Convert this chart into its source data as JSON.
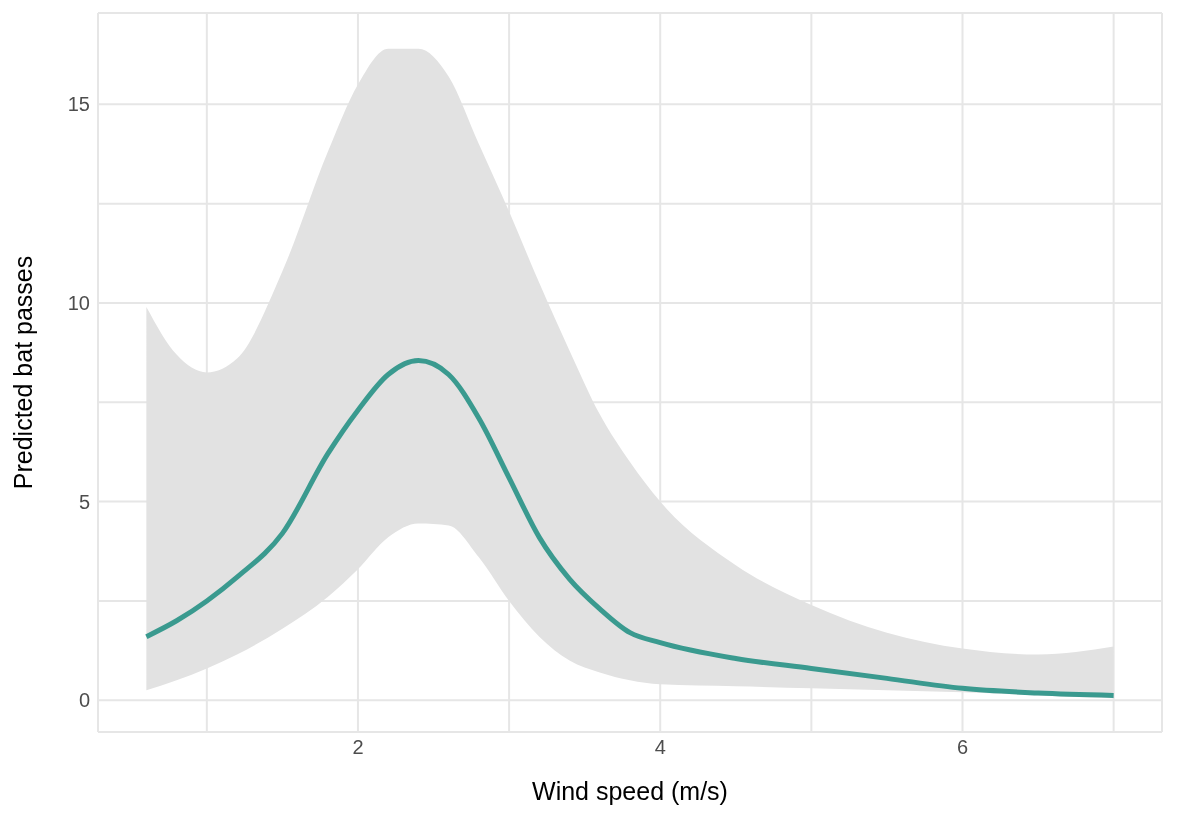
{
  "chart_data": {
    "type": "line",
    "xlabel": "Wind speed (m/s)",
    "ylabel": "Predicted bat passes",
    "x": [
      0.6,
      0.8,
      1.0,
      1.2,
      1.5,
      1.8,
      2.0,
      2.2,
      2.4,
      2.6,
      2.8,
      3.0,
      3.2,
      3.4,
      3.6,
      3.8,
      4.0,
      4.5,
      5.0,
      5.5,
      6.0,
      6.5,
      7.0
    ],
    "series": [
      {
        "color": "#3a9a8f",
        "values": [
          1.6,
          2.0,
          2.5,
          3.1,
          4.2,
          6.2,
          7.3,
          8.2,
          8.55,
          8.2,
          7.1,
          5.6,
          4.1,
          3.05,
          2.3,
          1.7,
          1.45,
          1.05,
          0.8,
          0.55,
          0.3,
          0.18,
          0.12
        ],
        "lower": [
          0.25,
          0.5,
          0.8,
          1.15,
          1.8,
          2.6,
          3.3,
          4.1,
          4.45,
          4.4,
          3.6,
          2.5,
          1.6,
          1.0,
          0.7,
          0.5,
          0.4,
          0.35,
          0.3,
          0.25,
          0.2,
          0.12,
          0.05
        ],
        "upper": [
          9.9,
          8.7,
          8.25,
          8.6,
          10.8,
          13.8,
          15.5,
          16.4,
          16.4,
          15.7,
          14.0,
          12.3,
          10.5,
          8.8,
          7.2,
          6.0,
          5.0,
          3.4,
          2.4,
          1.7,
          1.3,
          1.15,
          1.35
        ]
      }
    ],
    "xlim": [
      0.28,
      7.32
    ],
    "ylim": [
      -0.8,
      17.3
    ],
    "xticks": [
      {
        "value": 1,
        "label": null
      },
      2,
      {
        "value": 3,
        "label": null
      },
      4,
      {
        "value": 5,
        "label": null
      },
      6,
      {
        "value": 7,
        "label": null
      }
    ],
    "yticks": [
      0,
      {
        "value": 2.5,
        "label": null
      },
      5,
      {
        "value": 7.5,
        "label": null
      },
      10,
      {
        "value": 12.5,
        "label": null
      },
      15
    ],
    "grid": true,
    "marker": "none",
    "line_style": "solid"
  }
}
